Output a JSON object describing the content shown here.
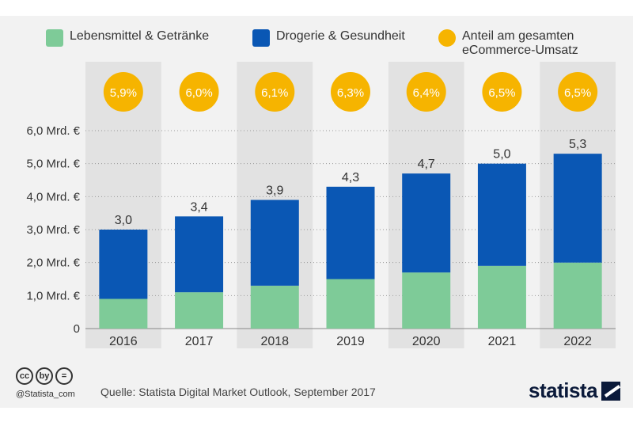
{
  "chart_data": {
    "type": "bar",
    "stacked": true,
    "categories": [
      "2016",
      "2017",
      "2018",
      "2019",
      "2020",
      "2021",
      "2022"
    ],
    "series": [
      {
        "name": "Lebensmittel  & Getränke",
        "color": "#7ecb98",
        "values": [
          0.9,
          1.1,
          1.3,
          1.5,
          1.7,
          1.9,
          2.0
        ]
      },
      {
        "name": "Drogerie & Gesundheit",
        "color": "#0a57b4",
        "values": [
          2.1,
          2.3,
          2.6,
          2.8,
          3.0,
          3.1,
          3.3
        ]
      }
    ],
    "totals": [
      3.0,
      3.4,
      3.9,
      4.3,
      4.7,
      5.0,
      5.3
    ],
    "total_labels": [
      "3,0",
      "3,4",
      "3,9",
      "4,3",
      "4,7",
      "5,0",
      "5,3"
    ],
    "share": {
      "name_line1": "Anteil am gesamten",
      "name_line2": "eCommerce-Umsatz",
      "color": "#f6b400",
      "values": [
        5.9,
        6.0,
        6.1,
        6.3,
        6.4,
        6.5,
        6.5
      ],
      "labels": [
        "5,9%",
        "6,0%",
        "6,1%",
        "6,3%",
        "6,4%",
        "6,5%",
        "6,5%"
      ]
    },
    "ylim": [
      0,
      6
    ],
    "yticks": [
      0,
      1,
      2,
      3,
      4,
      5,
      6
    ],
    "ytick_labels": [
      "0",
      "1,0 Mrd. €",
      "2,0 Mrd. €",
      "3,0 Mrd. €",
      "4,0 Mrd. €",
      "5,0 Mrd. €",
      "6,0 Mrd. €"
    ],
    "grid": true,
    "legend_position": "top"
  },
  "footer": {
    "handle": "@Statista_com",
    "source": "Quelle: Statista Digital Market Outlook, September 2017",
    "brand": "statista",
    "cc_icons": [
      "cc",
      "by",
      "="
    ]
  }
}
